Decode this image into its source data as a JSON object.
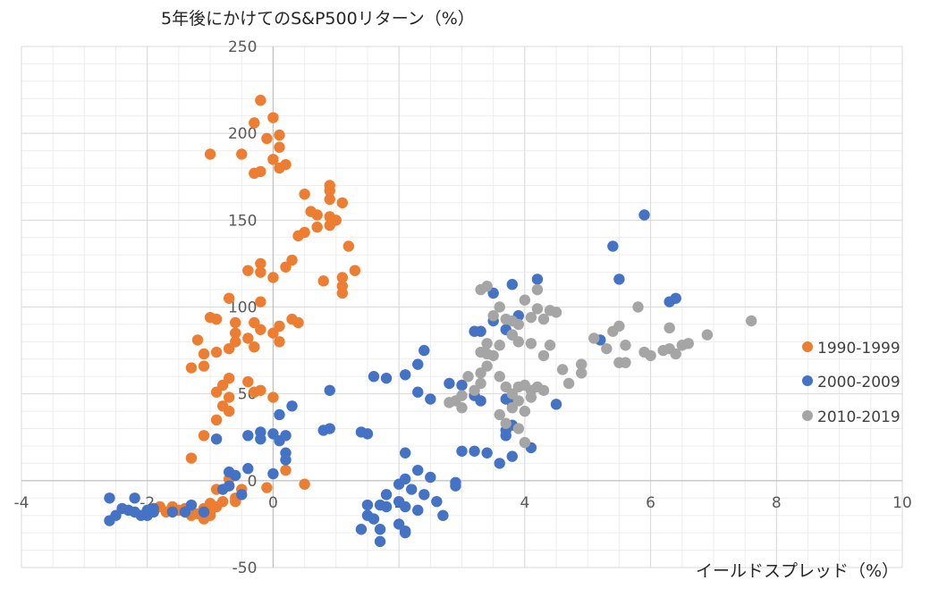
{
  "chart_data": {
    "type": "scatter",
    "title": "",
    "ylabel": "5年後にかけてのS&P500リターン（%）",
    "xlabel": "イールドスプレッド（%）",
    "xlim": [
      -4,
      10
    ],
    "ylim": [
      -50,
      250
    ],
    "x_ticks": [
      -4,
      -2,
      0,
      2,
      4,
      6,
      8,
      10
    ],
    "y_ticks": [
      -50,
      0,
      50,
      100,
      150,
      200,
      250
    ],
    "x_tick_labels": [
      "-4",
      "-2",
      "0",
      "2",
      "4",
      "6",
      "8",
      "10"
    ],
    "y_tick_labels": [
      "-50",
      "0",
      "50",
      "100",
      "150",
      "200",
      "250"
    ],
    "grid": true,
    "legend_position": "right",
    "series": [
      {
        "name": "1990-1999",
        "color": "#ED7D31",
        "points": [
          [
            -0.2,
            219
          ],
          [
            0.0,
            209
          ],
          [
            -0.3,
            206
          ],
          [
            0.1,
            199
          ],
          [
            -0.1,
            197
          ],
          [
            0.1,
            192
          ],
          [
            -1.0,
            188
          ],
          [
            -0.5,
            188
          ],
          [
            0.0,
            185
          ],
          [
            0.2,
            182
          ],
          [
            0.1,
            180
          ],
          [
            -0.2,
            178
          ],
          [
            -0.3,
            177
          ],
          [
            0.9,
            170
          ],
          [
            0.9,
            167
          ],
          [
            0.5,
            165
          ],
          [
            0.9,
            162
          ],
          [
            1.1,
            160
          ],
          [
            0.6,
            155
          ],
          [
            0.7,
            153
          ],
          [
            0.9,
            152
          ],
          [
            1.0,
            150
          ],
          [
            0.9,
            147
          ],
          [
            0.7,
            146
          ],
          [
            0.5,
            143
          ],
          [
            0.4,
            141
          ],
          [
            1.2,
            135
          ],
          [
            0.3,
            127
          ],
          [
            -0.2,
            125
          ],
          [
            0.2,
            123
          ],
          [
            -0.4,
            121
          ],
          [
            -0.2,
            120
          ],
          [
            1.3,
            121
          ],
          [
            1.1,
            117
          ],
          [
            0.0,
            117
          ],
          [
            0.8,
            115
          ],
          [
            1.1,
            112
          ],
          [
            1.1,
            108
          ],
          [
            -0.7,
            105
          ],
          [
            -0.2,
            103
          ],
          [
            -1.0,
            94
          ],
          [
            -0.9,
            93
          ],
          [
            -0.6,
            91
          ],
          [
            -0.3,
            91
          ],
          [
            0.3,
            93
          ],
          [
            0.4,
            91
          ],
          [
            0.1,
            89
          ],
          [
            -0.2,
            87
          ],
          [
            -0.6,
            85
          ],
          [
            0.0,
            85
          ],
          [
            -0.4,
            82
          ],
          [
            -1.2,
            81
          ],
          [
            -0.6,
            80
          ],
          [
            0.1,
            80
          ],
          [
            -0.3,
            77
          ],
          [
            -0.7,
            76
          ],
          [
            -0.9,
            74
          ],
          [
            -1.1,
            73
          ],
          [
            -1.3,
            65
          ],
          [
            -1.1,
            66
          ],
          [
            -0.7,
            59
          ],
          [
            -0.4,
            57
          ],
          [
            -0.8,
            55
          ],
          [
            -0.2,
            52
          ],
          [
            -0.3,
            51
          ],
          [
            -0.9,
            51
          ],
          [
            -0.7,
            48
          ],
          [
            0.0,
            48
          ],
          [
            -0.8,
            43
          ],
          [
            -0.7,
            40
          ],
          [
            -0.9,
            35
          ],
          [
            -1.1,
            26
          ],
          [
            -1.3,
            13
          ],
          [
            0.2,
            6
          ],
          [
            0.5,
            -2
          ],
          [
            -0.1,
            -4
          ],
          [
            -0.7,
            1
          ],
          [
            -0.5,
            -5
          ],
          [
            -0.9,
            -5
          ],
          [
            -0.6,
            -10
          ],
          [
            -0.8,
            -12
          ],
          [
            -0.9,
            -15
          ],
          [
            -0.6,
            -12
          ],
          [
            -1.0,
            -13
          ],
          [
            -1.0,
            -18
          ],
          [
            -1.2,
            -19
          ],
          [
            -1.1,
            -22
          ],
          [
            -1.4,
            -16
          ],
          [
            -1.6,
            -15
          ],
          [
            -1.5,
            -17
          ],
          [
            -1.7,
            -18
          ],
          [
            -1.1,
            -16
          ],
          [
            -1.8,
            -15
          ],
          [
            -1.3,
            -20
          ],
          [
            -1.0,
            -20
          ]
        ]
      },
      {
        "name": "2000-2009",
        "color": "#4472C4",
        "points": [
          [
            5.9,
            153
          ],
          [
            5.4,
            135
          ],
          [
            5.5,
            116
          ],
          [
            6.4,
            105
          ],
          [
            6.3,
            103
          ],
          [
            4.2,
            116
          ],
          [
            3.5,
            108
          ],
          [
            3.8,
            113
          ],
          [
            3.9,
            95
          ],
          [
            3.5,
            92
          ],
          [
            3.7,
            87
          ],
          [
            3.3,
            86
          ],
          [
            3.8,
            84
          ],
          [
            3.2,
            86
          ],
          [
            5.2,
            81
          ],
          [
            2.4,
            75
          ],
          [
            2.3,
            67
          ],
          [
            1.6,
            60
          ],
          [
            1.8,
            59
          ],
          [
            2.1,
            61
          ],
          [
            2.3,
            51
          ],
          [
            2.5,
            47
          ],
          [
            2.8,
            56
          ],
          [
            3.0,
            55
          ],
          [
            3.2,
            49
          ],
          [
            3.3,
            46
          ],
          [
            3.7,
            47
          ],
          [
            3.8,
            45
          ],
          [
            4.5,
            44
          ],
          [
            0.9,
            52
          ],
          [
            0.3,
            43
          ],
          [
            0.1,
            38
          ],
          [
            0.0,
            27
          ],
          [
            0.1,
            23
          ],
          [
            0.2,
            26
          ],
          [
            0.8,
            29
          ],
          [
            0.9,
            30
          ],
          [
            1.5,
            27
          ],
          [
            1.4,
            28
          ],
          [
            -0.2,
            28
          ],
          [
            -0.4,
            26
          ],
          [
            -0.2,
            24
          ],
          [
            -0.9,
            24
          ],
          [
            0.2,
            16
          ],
          [
            0.2,
            12
          ],
          [
            3.0,
            17
          ],
          [
            3.2,
            17
          ],
          [
            3.4,
            16
          ],
          [
            3.8,
            14
          ],
          [
            4.1,
            19
          ],
          [
            3.6,
            10
          ],
          [
            3.7,
            26
          ],
          [
            3.7,
            29
          ],
          [
            3.8,
            32
          ],
          [
            2.1,
            16
          ],
          [
            2.3,
            6
          ],
          [
            2.5,
            2
          ],
          [
            2.1,
            1
          ],
          [
            2.0,
            -2
          ],
          [
            2.2,
            -5
          ],
          [
            2.4,
            -8
          ],
          [
            2.0,
            -12
          ],
          [
            1.8,
            -8
          ],
          [
            1.7,
            -14
          ],
          [
            1.8,
            -15
          ],
          [
            2.1,
            -15
          ],
          [
            2.3,
            -17
          ],
          [
            2.6,
            -12
          ],
          [
            1.5,
            -14
          ],
          [
            1.5,
            -20
          ],
          [
            1.6,
            -22
          ],
          [
            1.4,
            -28
          ],
          [
            1.7,
            -28
          ],
          [
            2.0,
            -25
          ],
          [
            2.1,
            -29
          ],
          [
            1.7,
            -35
          ],
          [
            2.1,
            -30
          ],
          [
            2.7,
            -20
          ],
          [
            2.9,
            -3
          ],
          [
            2.9,
            -1
          ],
          [
            0.0,
            4
          ],
          [
            -0.4,
            7
          ],
          [
            -0.7,
            5
          ],
          [
            -0.6,
            3
          ],
          [
            -0.7,
            -3
          ],
          [
            -0.8,
            -5
          ],
          [
            -0.5,
            -8
          ],
          [
            -1.1,
            -18
          ],
          [
            -1.3,
            -14
          ],
          [
            -1.4,
            -18
          ],
          [
            -1.6,
            -18
          ],
          [
            -1.9,
            -18
          ],
          [
            -2.0,
            -20
          ],
          [
            -2.2,
            -18
          ],
          [
            -2.3,
            -17
          ],
          [
            -2.4,
            -16
          ],
          [
            -1.9,
            -16
          ],
          [
            -2.0,
            -17
          ],
          [
            -2.5,
            -20
          ],
          [
            -2.6,
            -23
          ],
          [
            -2.1,
            -20
          ],
          [
            -2.6,
            -10
          ],
          [
            -2.2,
            -10
          ]
        ]
      },
      {
        "name": "2010-2019",
        "color": "#A5A5A5",
        "points": [
          [
            7.6,
            92
          ],
          [
            6.9,
            84
          ],
          [
            6.6,
            79
          ],
          [
            6.5,
            78
          ],
          [
            6.3,
            76
          ],
          [
            6.4,
            73
          ],
          [
            6.2,
            75
          ],
          [
            6.0,
            72
          ],
          [
            5.9,
            74
          ],
          [
            6.3,
            88
          ],
          [
            5.8,
            100
          ],
          [
            5.5,
            89
          ],
          [
            5.4,
            86
          ],
          [
            5.6,
            78
          ],
          [
            5.3,
            76
          ],
          [
            5.6,
            68
          ],
          [
            5.5,
            68
          ],
          [
            5.1,
            82
          ],
          [
            4.9,
            67
          ],
          [
            4.9,
            62
          ],
          [
            4.7,
            56
          ],
          [
            4.5,
            97
          ],
          [
            4.4,
            98
          ],
          [
            4.3,
            93
          ],
          [
            4.4,
            78
          ],
          [
            4.3,
            72
          ],
          [
            4.1,
            79
          ],
          [
            4.1,
            94
          ],
          [
            4.2,
            99
          ],
          [
            4.2,
            110
          ],
          [
            4.0,
            104
          ],
          [
            3.9,
            90
          ],
          [
            3.8,
            84
          ],
          [
            3.9,
            80
          ],
          [
            3.6,
            78
          ],
          [
            3.5,
            72
          ],
          [
            3.4,
            73
          ],
          [
            3.4,
            66
          ],
          [
            3.3,
            62
          ],
          [
            3.6,
            60
          ],
          [
            3.7,
            54
          ],
          [
            3.8,
            50
          ],
          [
            3.9,
            54
          ],
          [
            4.0,
            55
          ],
          [
            4.1,
            52
          ],
          [
            4.2,
            54
          ],
          [
            4.3,
            52
          ],
          [
            4.1,
            48
          ],
          [
            3.9,
            46
          ],
          [
            3.8,
            42
          ],
          [
            3.6,
            38
          ],
          [
            3.7,
            33
          ],
          [
            3.3,
            56
          ],
          [
            3.2,
            52
          ],
          [
            3.0,
            49
          ],
          [
            2.9,
            46
          ],
          [
            2.8,
            45
          ],
          [
            3.0,
            42
          ],
          [
            3.1,
            60
          ],
          [
            3.3,
            74
          ],
          [
            3.4,
            79
          ],
          [
            3.5,
            95
          ],
          [
            3.6,
            100
          ],
          [
            3.3,
            110
          ],
          [
            3.4,
            112
          ],
          [
            3.7,
            93
          ],
          [
            3.8,
            92
          ],
          [
            4.6,
            64
          ],
          [
            4.0,
            40
          ],
          [
            3.9,
            30
          ],
          [
            4.0,
            22
          ]
        ]
      }
    ]
  }
}
